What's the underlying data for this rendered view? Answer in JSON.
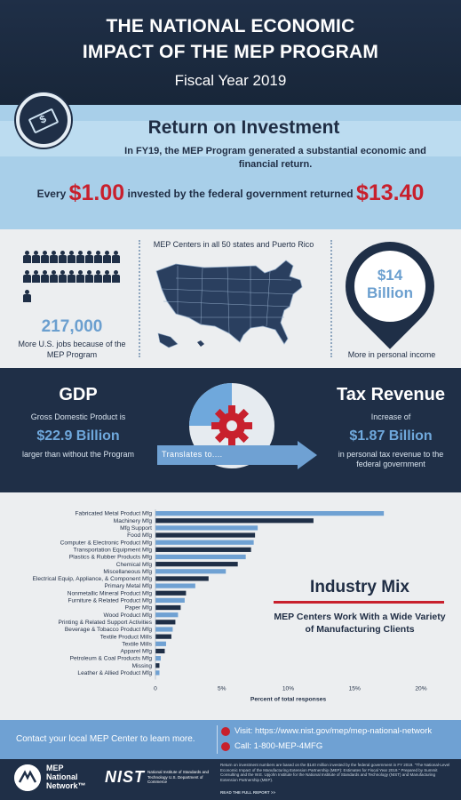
{
  "header": {
    "title_line1": "THE NATIONAL ECONOMIC",
    "title_line2": "IMPACT OF THE MEP PROGRAM",
    "subtitle": "Fiscal Year 2019"
  },
  "roi": {
    "title": "Return on Investment",
    "description": "In FY19, the MEP Program generated a substantial economic and financial return.",
    "line_prefix": "Every",
    "invested": "$1.00",
    "line_middle": "invested by the federal government returned",
    "returned": "$13.40",
    "coin_symbol": "$"
  },
  "jobs": {
    "value": "217,000",
    "text": "More U.S. jobs because of the MEP Program",
    "person_icon_count": 23
  },
  "map": {
    "caption": "MEP Centers in all 50 states and Puerto Rico"
  },
  "income": {
    "value_line1": "$14",
    "value_line2": "Billion",
    "text": "More in personal income"
  },
  "gdp": {
    "title": "GDP",
    "text1": "Gross Domestic Product is",
    "value": "$22.9 Billion",
    "text2": "larger than without the Program"
  },
  "translates": "Translates to....",
  "tax": {
    "title": "Tax Revenue",
    "text1": "Increase of",
    "value": "$1.87 Billion",
    "text2": "in personal tax revenue to the federal government"
  },
  "industry": {
    "title": "Industry Mix",
    "subtitle": "MEP Centers Work With a Wide Variety of Manufacturing Clients"
  },
  "colors": {
    "navy": "#1f2f47",
    "light_blue": "#6fa1d3",
    "red": "#c8202d"
  },
  "chart_data": {
    "type": "bar",
    "orientation": "horizontal",
    "xlabel": "Percent of total responses",
    "xlim": [
      0,
      20
    ],
    "xticks": [
      "0",
      "5%",
      "10%",
      "15%",
      "20%"
    ],
    "grid": false,
    "categories": [
      "Fabricated Metal Product Mfg",
      "Machinery Mfg",
      "Mfg Support",
      "Food Mfg",
      "Computer & Electronic Product Mfg",
      "Transportation Equipment Mfg",
      "Plastics & Rubber Products Mfg",
      "Chemical Mfg",
      "Miscellaneous Mfg",
      "Electrical Equip, Appliance, & Component Mfg",
      "Primary Metal Mfg",
      "Nonmetallic Mineral Product Mfg",
      "Furniture & Related Product Mfg",
      "Paper Mfg",
      "Wood Product Mfg",
      "Printing & Related Support Activities",
      "Beverage & Tobacco Product Mfg",
      "Textile Product Mills",
      "Textile Mills",
      "Apparel Mfg",
      "Petroleum & Coal Products Mfg",
      "Missing",
      "Leather & Allied Product Mfg"
    ],
    "values": [
      17.2,
      11.9,
      7.7,
      7.5,
      7.4,
      7.2,
      6.8,
      6.2,
      5.3,
      4.0,
      3.0,
      2.3,
      2.2,
      1.9,
      1.7,
      1.5,
      1.3,
      1.2,
      0.8,
      0.7,
      0.4,
      0.3,
      0.3
    ],
    "bar_colors": [
      "#6fa1d3",
      "#1f2f47"
    ]
  },
  "contact": {
    "text": "Contact your local MEP Center to learn more.",
    "url": "Visit: https://www.nist.gov/mep/mep-national-network",
    "phone": "Call: 1-800-MEP-4MFG"
  },
  "footer": {
    "mep_line1": "MEP",
    "mep_line2": "National",
    "mep_line3": "Network™",
    "nist": "NIST",
    "nist_sub": "National Institute of Standards and Technology U.S. Department of Commerce",
    "fine_print": "Return on investment numbers are based on the $140 million invested by the federal government in FY 2019. \"The National-Level Economic Impact of the Manufacturing Extension Partnership (MEP): Estimates for Fiscal Year 2019.\" Prepared by Summit Consulting and the W.E. Upjohn Institute for the National Institute of Standards and Technology (NIST) and Manufacturing Extension Partnership (MEP).",
    "read_more": "READ THE FULL REPORT >>"
  }
}
